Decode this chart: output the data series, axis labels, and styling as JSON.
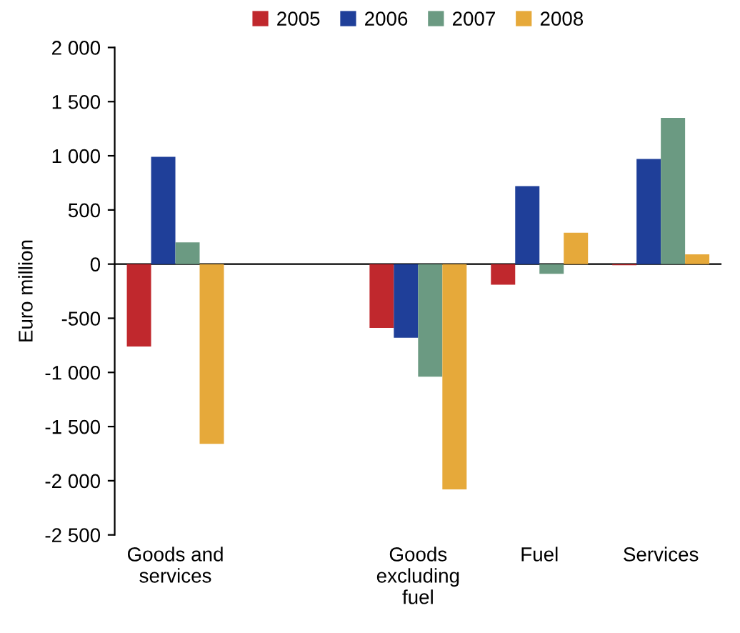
{
  "chart_data": {
    "type": "bar",
    "ylabel": "Euro million",
    "categories": [
      "Goods and\nservices",
      null,
      "Goods\nexcluding\nfuel",
      "Fuel",
      "Services"
    ],
    "series": [
      {
        "name": "2005",
        "color": "#c0282d",
        "values": [
          -760,
          null,
          -590,
          -190,
          -10
        ]
      },
      {
        "name": "2006",
        "color": "#1f3f99",
        "values": [
          990,
          null,
          -680,
          720,
          970
        ]
      },
      {
        "name": "2007",
        "color": "#6b9a82",
        "values": [
          200,
          null,
          -1040,
          -90,
          1350
        ]
      },
      {
        "name": "2008",
        "color": "#e6a93a",
        "values": [
          -1660,
          null,
          -2080,
          290,
          90
        ]
      }
    ],
    "ylim": [
      -2500,
      2000
    ],
    "yticks": [
      {
        "value": -2500,
        "label": "-2 500"
      },
      {
        "value": -2000,
        "label": "-2 000"
      },
      {
        "value": -1500,
        "label": "-1 500"
      },
      {
        "value": -1000,
        "label": "-1 000"
      },
      -500,
      0,
      500,
      {
        "value": 1000,
        "label": "1 000"
      },
      {
        "value": 1500,
        "label": "1 500"
      },
      {
        "value": 2000,
        "label": "2 000"
      }
    ],
    "legend": "top"
  }
}
